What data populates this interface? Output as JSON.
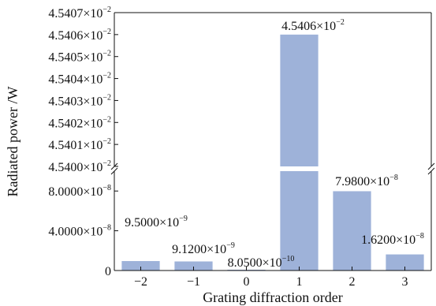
{
  "chart_data": {
    "type": "bar",
    "xlabel": "Grating diffraction order",
    "ylabel": "Radiated power /W",
    "categories": [
      "−2",
      "−1",
      "0",
      "1",
      "2",
      "3"
    ],
    "values": [
      9.5e-09,
      9.12e-09,
      8.05e-10,
      0.045406,
      7.98e-08,
      1.62e-08
    ],
    "data_labels": [
      {
        "mant": "9.5000×10",
        "exp": "−9"
      },
      {
        "mant": "9.1200×10",
        "exp": "−9"
      },
      {
        "mant": "8.0500×10",
        "exp": "−10"
      },
      {
        "mant": "4.5406×10",
        "exp": "−2"
      },
      {
        "mant": "7.9800×10",
        "exp": "−8"
      },
      {
        "mant": "1.6200×10",
        "exp": "−8"
      }
    ],
    "axis_break": true,
    "lower_ylim": [
      0,
      1e-07
    ],
    "upper_ylim": [
      0.0454,
      0.045407
    ],
    "lower_yticks": [
      {
        "value": 0,
        "mant": "0",
        "exp": ""
      },
      {
        "value": 4e-08,
        "mant": "4.0000×10",
        "exp": "−8"
      },
      {
        "value": 8e-08,
        "mant": "8.0000×10",
        "exp": "−8"
      }
    ],
    "upper_yticks": [
      {
        "value": 0.0454,
        "mant": "4.5400×10",
        "exp": "−2"
      },
      {
        "value": 0.045401,
        "mant": "4.5401×10",
        "exp": "−2"
      },
      {
        "value": 0.045402,
        "mant": "4.5402×10",
        "exp": "−2"
      },
      {
        "value": 0.045403,
        "mant": "4.5403×10",
        "exp": "−2"
      },
      {
        "value": 0.045404,
        "mant": "4.5404×10",
        "exp": "−2"
      },
      {
        "value": 0.045405,
        "mant": "4.5405×10",
        "exp": "−2"
      },
      {
        "value": 0.045406,
        "mant": "4.5406×10",
        "exp": "−2"
      },
      {
        "value": 0.045407,
        "mant": "4.5407×10",
        "exp": "−2"
      }
    ],
    "bar_color": "#9eb2d9",
    "grid": false
  }
}
